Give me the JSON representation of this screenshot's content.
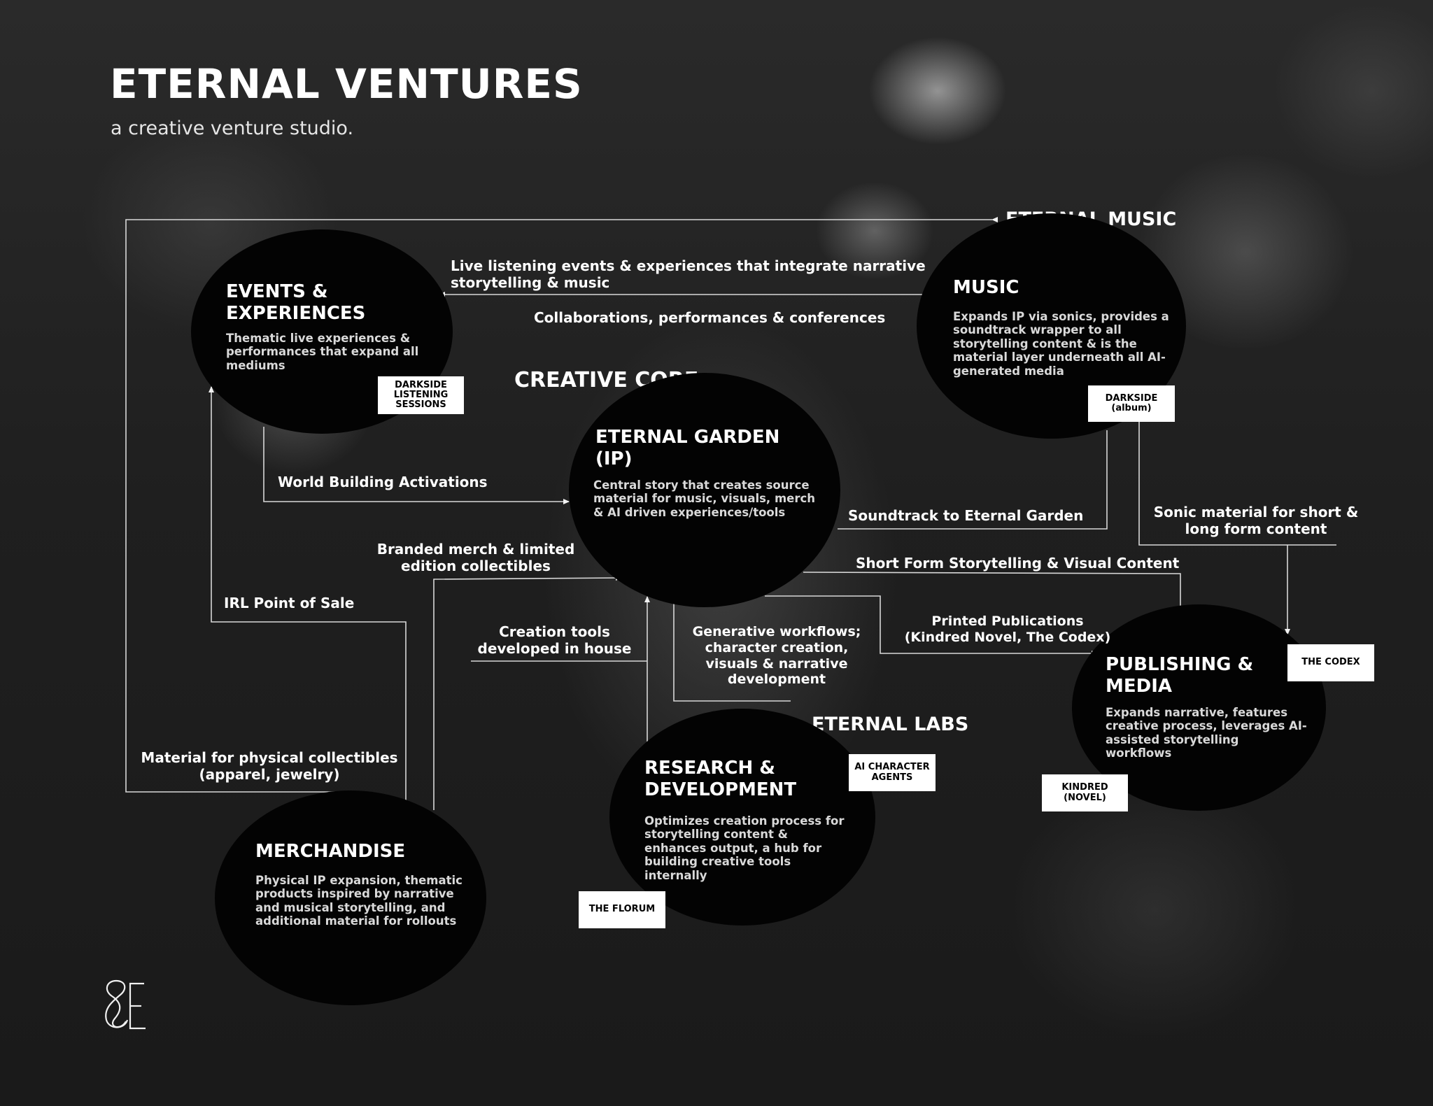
{
  "header": {
    "title": "ETERNAL VENTURES",
    "subtitle": "a creative venture studio."
  },
  "sections": {
    "eternal_music": "ETERNAL MUSIC",
    "creative_core": "CREATIVE CORE",
    "eternal_labs": "ETERNAL LABS"
  },
  "nodes": {
    "events": {
      "title": "EVENTS & EXPERIENCES",
      "description": "Thematic live experiences & performances that expand all mediums",
      "tag": "DARKSIDE LISTENING SESSIONS"
    },
    "music": {
      "title": "MUSIC",
      "description": "Expands IP via sonics, provides a soundtrack wrapper to all storytelling content & is the material layer underneath all AI-generated media",
      "tag": "DARKSIDE (album)"
    },
    "garden": {
      "title": "ETERNAL GARDEN (IP)",
      "description": "Central story that creates source material for music, visuals, merch & AI driven experiences/tools"
    },
    "publishing": {
      "title": "PUBLISHING & MEDIA",
      "description": "Expands narrative, features creative process, leverages AI-assisted storytelling workflows",
      "tags": [
        "THE CODEX",
        "KINDRED (NOVEL)"
      ]
    },
    "research": {
      "title": "RESEARCH & DEVELOPMENT",
      "description": "Optimizes creation process for storytelling content & enhances output, a hub for building creative tools internally",
      "tags": [
        "AI CHARACTER AGENTS",
        "THE FLORUM"
      ]
    },
    "merch": {
      "title": "MERCHANDISE",
      "description": "Physical IP expansion, thematic products inspired by narrative and musical storytelling, and additional material for rollouts"
    }
  },
  "connections": {
    "live_listening": "Live listening events & experiences that integrate narrative storytelling & music",
    "collaborations": "Collaborations, performances & conferences",
    "world_building": "World Building Activations",
    "soundtrack": "Soundtrack to Eternal Garden",
    "sonic_material": "Sonic material for short & long form content",
    "short_form": "Short Form Storytelling & Visual Content",
    "branded_merch": "Branded merch & limited edition collectibles",
    "irl_pos": "IRL Point of Sale",
    "creation_tools": "Creation tools developed in house",
    "generative": "Generative workflows; character creation, visuals & narrative development",
    "printed": "Printed Publications (Kindred Novel, The Codex)",
    "physical_material": "Material for physical collectibles (apparel, jewelry)"
  },
  "colors": {
    "background": "#1f1f1f",
    "node": "#030303",
    "text": "#ffffff",
    "tag_bg": "#ffffff"
  }
}
